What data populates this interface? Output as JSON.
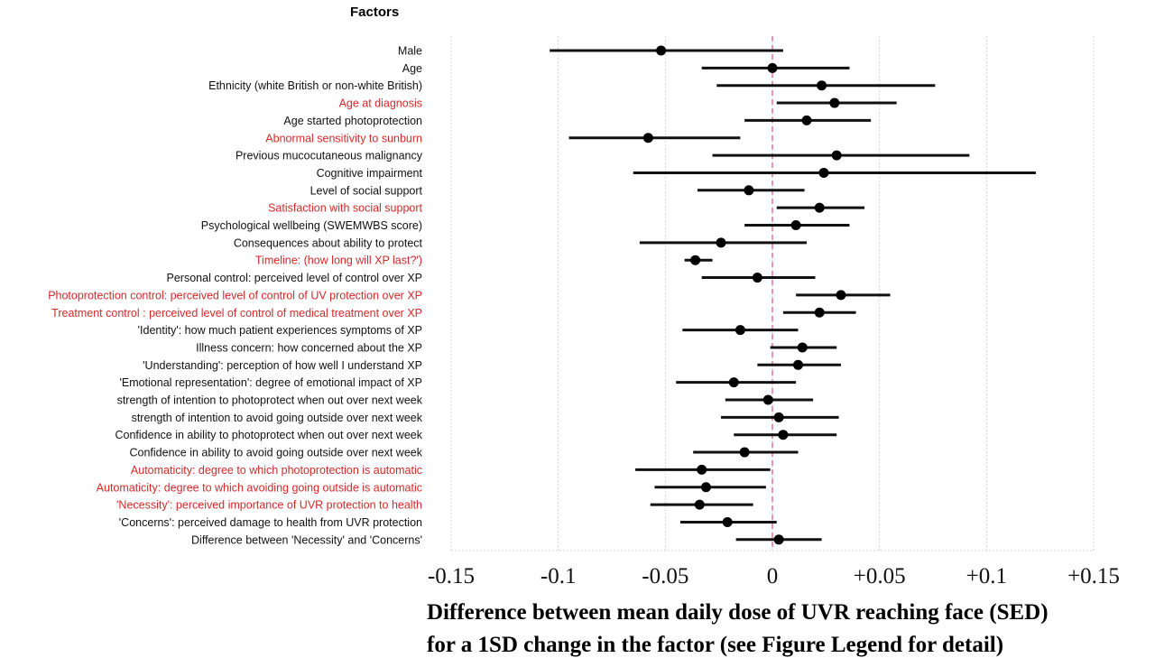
{
  "chart_data": {
    "type": "forest",
    "title": "Factors",
    "xlabel_lines": [
      "Difference between mean daily dose of UVR reaching face (SED)",
      "for a 1SD change in the factor (see Figure Legend for detail)"
    ],
    "xlim": [
      -0.15,
      0.15
    ],
    "xticks": [
      -0.15,
      -0.1,
      -0.05,
      0,
      0.05,
      0.1,
      0.15
    ],
    "xtick_labels": [
      "-0.15",
      "-0.1",
      "-0.05",
      "0",
      "+0.05",
      "+0.1",
      "+0.15"
    ],
    "reference_line": 0,
    "grid": true,
    "colors": {
      "highlight": "#d42a2a",
      "normal": "#111111",
      "point": "#000000",
      "reference": "#e05a8a"
    },
    "factors": [
      {
        "label": "Male",
        "estimate": -0.052,
        "lower": -0.104,
        "upper": 0.005,
        "highlight": false
      },
      {
        "label": "Age",
        "estimate": 0.0,
        "lower": -0.033,
        "upper": 0.036,
        "highlight": false
      },
      {
        "label": "Ethnicity (white British or non-white British)",
        "estimate": 0.023,
        "lower": -0.026,
        "upper": 0.076,
        "highlight": false
      },
      {
        "label": "Age at diagnosis",
        "estimate": 0.029,
        "lower": 0.002,
        "upper": 0.058,
        "highlight": true
      },
      {
        "label": "Age started photoprotection",
        "estimate": 0.016,
        "lower": -0.013,
        "upper": 0.046,
        "highlight": false
      },
      {
        "label": "Abnormal sensitivity to sunburn",
        "estimate": -0.058,
        "lower": -0.095,
        "upper": -0.015,
        "highlight": true
      },
      {
        "label": "Previous  mucocutaneous malignancy",
        "estimate": 0.03,
        "lower": -0.028,
        "upper": 0.092,
        "highlight": false
      },
      {
        "label": "Cognitive  impairment",
        "estimate": 0.024,
        "lower": -0.065,
        "upper": 0.123,
        "highlight": false
      },
      {
        "label": "Level  of social support",
        "estimate": -0.011,
        "lower": -0.035,
        "upper": 0.015,
        "highlight": false
      },
      {
        "label": "Satisfaction with social support",
        "estimate": 0.022,
        "lower": 0.002,
        "upper": 0.043,
        "highlight": true
      },
      {
        "label": "Psychological wellbeing  (SWEMWBS score)",
        "estimate": 0.011,
        "lower": -0.013,
        "upper": 0.036,
        "highlight": false
      },
      {
        "label": "Consequences about ability to protect",
        "estimate": -0.024,
        "lower": -0.062,
        "upper": 0.016,
        "highlight": false
      },
      {
        "label": "Timeline: (how long will XP last?')",
        "estimate": -0.036,
        "lower": -0.041,
        "upper": -0.028,
        "highlight": true
      },
      {
        "label": "Personal control: perceived level of control over XP",
        "estimate": -0.007,
        "lower": -0.033,
        "upper": 0.02,
        "highlight": false
      },
      {
        "label": "Photoprotection control: perceived level of control of UV protection over XP",
        "estimate": 0.032,
        "lower": 0.011,
        "upper": 0.055,
        "highlight": true
      },
      {
        "label": "Treatment control : perceived level of control of medical treatment over XP",
        "estimate": 0.022,
        "lower": 0.005,
        "upper": 0.039,
        "highlight": true
      },
      {
        "label": "'Identity': how much patient experiences symptoms of XP",
        "estimate": -0.015,
        "lower": -0.042,
        "upper": 0.012,
        "highlight": false
      },
      {
        "label": "Illness concern: how concerned about the XP",
        "estimate": 0.014,
        "lower": -0.001,
        "upper": 0.03,
        "highlight": false
      },
      {
        "label": "'Understanding': perception of how well I understand XP",
        "estimate": 0.012,
        "lower": -0.007,
        "upper": 0.032,
        "highlight": false
      },
      {
        "label": "'Emotional representation':  degree of emotional impact of XP",
        "estimate": -0.018,
        "lower": -0.045,
        "upper": 0.011,
        "highlight": false
      },
      {
        "label": "strength of intention to photoprotect  when out over next week",
        "estimate": -0.002,
        "lower": -0.022,
        "upper": 0.019,
        "highlight": false
      },
      {
        "label": "strength of intention to avoid  going outside over next week",
        "estimate": 0.003,
        "lower": -0.024,
        "upper": 0.031,
        "highlight": false
      },
      {
        "label": "Confidence in ability to photoprotect  when out over next week",
        "estimate": 0.005,
        "lower": -0.018,
        "upper": 0.03,
        "highlight": false
      },
      {
        "label": "Confidence in ability to avoid going outside over next week",
        "estimate": -0.013,
        "lower": -0.037,
        "upper": 0.012,
        "highlight": false
      },
      {
        "label": "Automaticity: degree to which photoprotection is automatic",
        "estimate": -0.033,
        "lower": -0.064,
        "upper": -0.001,
        "highlight": true
      },
      {
        "label": "Automaticity: degree to which avoiding going outside is automatic",
        "estimate": -0.031,
        "lower": -0.055,
        "upper": -0.003,
        "highlight": true
      },
      {
        "label": "'Necessity': perceived importance of UVR protection to health",
        "estimate": -0.034,
        "lower": -0.057,
        "upper": -0.009,
        "highlight": true
      },
      {
        "label": "'Concerns': perceived damage to health from UVR protection",
        "estimate": -0.021,
        "lower": -0.043,
        "upper": 0.002,
        "highlight": false
      },
      {
        "label": "Difference between 'Necessity' and 'Concerns'",
        "estimate": 0.003,
        "lower": -0.017,
        "upper": 0.023,
        "highlight": false
      }
    ]
  }
}
